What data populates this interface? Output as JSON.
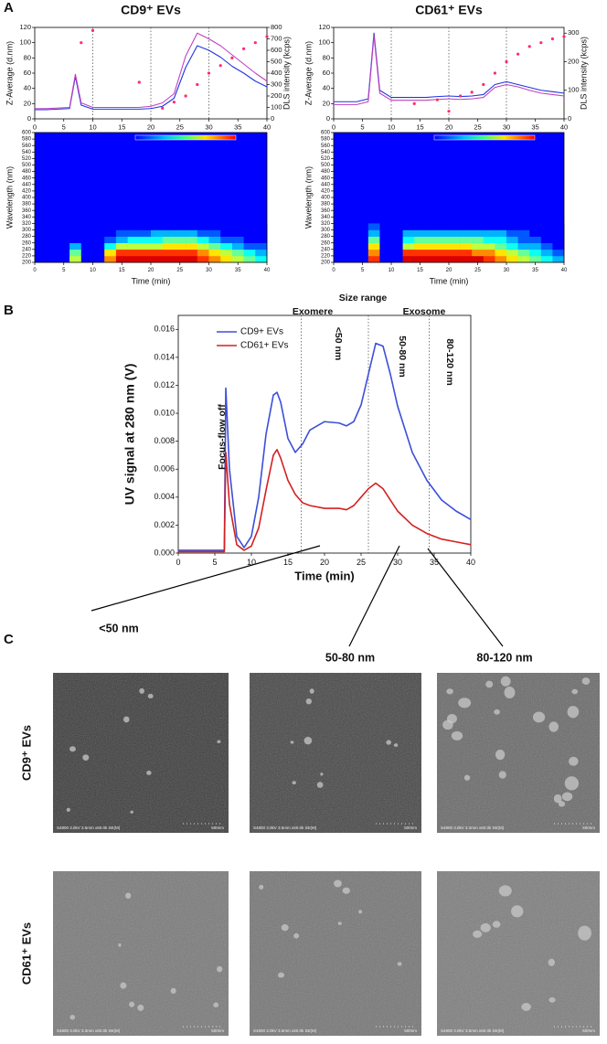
{
  "panel_labels": [
    "A",
    "B",
    "C"
  ],
  "chart_data": [
    {
      "type": "line",
      "title": "CD9⁺ EVs",
      "ylabel": "Z-Average (d.nm)",
      "y2label": "DLS intensity (kcps)",
      "x": [
        0,
        2,
        4,
        6,
        7,
        8,
        10,
        12,
        14,
        16,
        18,
        20,
        22,
        24,
        26,
        28,
        30,
        32,
        34,
        36,
        38,
        40
      ],
      "series": [
        {
          "color": "#1f35e0",
          "axis": "y2",
          "mode": "lines",
          "values": [
            80,
            80,
            85,
            90,
            370,
            120,
            85,
            85,
            85,
            85,
            85,
            90,
            110,
            180,
            450,
            640,
            600,
            540,
            460,
            400,
            330,
            280
          ]
        },
        {
          "color": "#c040c0",
          "axis": "y2",
          "mode": "lines",
          "values": [
            90,
            90,
            95,
            100,
            390,
            140,
            100,
            100,
            100,
            100,
            100,
            110,
            140,
            220,
            550,
            750,
            700,
            640,
            560,
            480,
            400,
            330
          ]
        },
        {
          "color": "#ff2a6d",
          "mode": "markers",
          "values": [
            null,
            null,
            null,
            null,
            null,
            100,
            116,
            null,
            null,
            null,
            48,
            null,
            14,
            22,
            30,
            45,
            60,
            70,
            80,
            92,
            100,
            108
          ]
        }
      ],
      "xlim": [
        0,
        40
      ],
      "xticks": [
        0,
        5,
        10,
        15,
        20,
        25,
        30,
        35,
        40
      ],
      "ylim": [
        0,
        120
      ],
      "yticks": [
        0,
        20,
        40,
        60,
        80,
        100,
        120
      ],
      "y2lim": [
        0,
        800
      ],
      "y2ticks": [
        0,
        100,
        200,
        300,
        400,
        500,
        600,
        700,
        800
      ],
      "vlines": [
        10,
        20,
        30
      ]
    },
    {
      "type": "heatmap",
      "xlabel": "Time (min)",
      "ylabel": "Wavelength (nm)",
      "x_bins": [
        0,
        2,
        4,
        6,
        8,
        10,
        12,
        14,
        16,
        18,
        20,
        22,
        24,
        26,
        28,
        30,
        32,
        34,
        36,
        38,
        40
      ],
      "y_bins": [
        200,
        220,
        240,
        260,
        280,
        300,
        320
      ],
      "z": [
        [
          0,
          0,
          0,
          5,
          0,
          0,
          7,
          9,
          9,
          9,
          9,
          9,
          9,
          9,
          8,
          7,
          6,
          5,
          4,
          3
        ],
        [
          0,
          0,
          0,
          4,
          0,
          0,
          6,
          8,
          8,
          8,
          8,
          8,
          8,
          8,
          7,
          6,
          5,
          4,
          3,
          2
        ],
        [
          0,
          0,
          0,
          2,
          0,
          0,
          3,
          5,
          5,
          5,
          5,
          6,
          6,
          6,
          5,
          4,
          3,
          2,
          1,
          1
        ],
        [
          0,
          0,
          0,
          0,
          0,
          0,
          1,
          2,
          3,
          3,
          3,
          4,
          4,
          4,
          3,
          2,
          1,
          1,
          0,
          0
        ],
        [
          0,
          0,
          0,
          0,
          0,
          0,
          0,
          1,
          1,
          1,
          2,
          2,
          2,
          2,
          1,
          1,
          0,
          0,
          0,
          0
        ],
        [
          0,
          0,
          0,
          0,
          0,
          0,
          0,
          0,
          0,
          0,
          0,
          0,
          0,
          0,
          0,
          0,
          0,
          0,
          0,
          0
        ]
      ],
      "zlim": [
        0,
        10
      ],
      "xlim": [
        0,
        40
      ],
      "xticks": [
        0,
        5,
        10,
        15,
        20,
        25,
        30,
        35,
        40
      ],
      "ylim": [
        200,
        600
      ],
      "yticks": [
        200,
        220,
        240,
        260,
        280,
        300,
        320,
        340,
        360,
        380,
        400,
        420,
        440,
        460,
        480,
        500,
        520,
        540,
        560,
        580,
        600
      ]
    },
    {
      "type": "line",
      "title": "CD61⁺ EVs",
      "ylabel": "Z-Average (d.nm)",
      "y2label": "DLS intensity (kcps)",
      "x": [
        0,
        2,
        4,
        6,
        7,
        8,
        10,
        12,
        14,
        16,
        18,
        20,
        22,
        24,
        26,
        28,
        30,
        32,
        34,
        36,
        38,
        40
      ],
      "series": [
        {
          "color": "#1f35e0",
          "axis": "y2",
          "mode": "lines",
          "values": [
            60,
            60,
            60,
            70,
            300,
            100,
            75,
            75,
            75,
            75,
            78,
            80,
            78,
            80,
            85,
            120,
            130,
            120,
            110,
            100,
            95,
            90
          ]
        },
        {
          "color": "#c040c0",
          "axis": "y2",
          "mode": "lines",
          "values": [
            50,
            50,
            50,
            60,
            290,
            90,
            65,
            65,
            65,
            65,
            68,
            70,
            68,
            70,
            75,
            110,
            120,
            112,
            100,
            90,
            85,
            80
          ]
        },
        {
          "color": "#ff2a6d",
          "mode": "markers",
          "values": [
            null,
            null,
            null,
            null,
            null,
            null,
            null,
            null,
            20,
            null,
            25,
            10,
            30,
            35,
            45,
            60,
            75,
            85,
            95,
            100,
            105,
            108
          ]
        }
      ],
      "xlim": [
        0,
        40
      ],
      "xticks": [
        0,
        5,
        10,
        15,
        20,
        25,
        30,
        35,
        40
      ],
      "ylim": [
        0,
        120
      ],
      "yticks": [
        0,
        20,
        40,
        60,
        80,
        100,
        120
      ],
      "y2lim": [
        0,
        320
      ],
      "y2ticks": [
        0,
        100,
        200,
        300
      ],
      "vlines": [
        10,
        20,
        30
      ]
    },
    {
      "type": "heatmap",
      "xlabel": "Time (min)",
      "ylabel": "Wavelength (nm)",
      "x_bins": [
        0,
        2,
        4,
        6,
        8,
        10,
        12,
        14,
        16,
        18,
        20,
        22,
        24,
        26,
        28,
        30,
        32,
        34,
        36,
        38,
        40
      ],
      "y_bins": [
        200,
        220,
        240,
        260,
        280,
        300,
        320
      ],
      "z": [
        [
          0,
          0,
          0,
          8,
          0,
          0,
          9,
          9,
          9,
          9,
          9,
          9,
          9,
          8,
          7,
          6,
          5,
          4,
          3,
          2
        ],
        [
          0,
          0,
          0,
          7,
          0,
          0,
          8,
          8,
          8,
          8,
          8,
          8,
          7,
          7,
          6,
          5,
          4,
          3,
          2,
          1
        ],
        [
          0,
          0,
          0,
          6,
          0,
          0,
          5,
          6,
          6,
          6,
          6,
          6,
          5,
          5,
          4,
          3,
          2,
          2,
          1,
          0
        ],
        [
          0,
          0,
          0,
          4,
          0,
          0,
          3,
          4,
          4,
          4,
          4,
          4,
          4,
          3,
          3,
          2,
          1,
          1,
          0,
          0
        ],
        [
          0,
          0,
          0,
          2,
          0,
          0,
          2,
          2,
          2,
          2,
          2,
          2,
          2,
          2,
          2,
          1,
          1,
          0,
          0,
          0
        ],
        [
          0,
          0,
          0,
          1,
          0,
          0,
          0,
          0,
          0,
          0,
          0,
          0,
          0,
          0,
          0,
          0,
          0,
          0,
          0,
          0
        ]
      ],
      "zlim": [
        0,
        10
      ],
      "xlim": [
        0,
        40
      ],
      "xticks": [
        0,
        5,
        10,
        15,
        20,
        25,
        30,
        35,
        40
      ],
      "ylim": [
        200,
        600
      ],
      "yticks": [
        200,
        220,
        240,
        260,
        280,
        300,
        320,
        340,
        360,
        380,
        400,
        420,
        440,
        460,
        480,
        500,
        520,
        540,
        560,
        580,
        600
      ]
    },
    {
      "type": "line",
      "xlabel": "Time (min)",
      "ylabel": "UV signal at 280 nm (V)",
      "x": [
        0,
        5,
        6.3,
        6.5,
        7,
        8,
        9,
        10,
        11,
        12,
        13,
        13.5,
        14,
        15,
        16,
        17,
        18,
        20,
        22,
        23,
        24,
        25,
        26,
        27,
        28,
        29,
        30,
        32,
        34,
        36,
        38,
        40
      ],
      "series": [
        {
          "name": "CD9+ EVs",
          "color": "#3b4fd8",
          "mode": "lines",
          "values": [
            0.0002,
            0.0002,
            0.0002,
            0.0118,
            0.006,
            0.0012,
            0.0004,
            0.0012,
            0.004,
            0.0085,
            0.0113,
            0.0115,
            0.0108,
            0.0082,
            0.0072,
            0.0078,
            0.0088,
            0.0094,
            0.0093,
            0.0091,
            0.0094,
            0.0106,
            0.0128,
            0.015,
            0.0148,
            0.0128,
            0.0105,
            0.0072,
            0.0052,
            0.0038,
            0.003,
            0.0024
          ]
        },
        {
          "name": "CD61+ EVs",
          "color": "#d42020",
          "mode": "lines",
          "values": [
            0.0001,
            0.0001,
            0.0001,
            0.0072,
            0.0035,
            0.0006,
            0.0002,
            0.0005,
            0.0018,
            0.0045,
            0.007,
            0.0074,
            0.0068,
            0.0052,
            0.0042,
            0.0036,
            0.0034,
            0.0032,
            0.0032,
            0.0031,
            0.0034,
            0.004,
            0.0046,
            0.005,
            0.0046,
            0.0038,
            0.003,
            0.002,
            0.0014,
            0.001,
            0.0008,
            0.0006
          ]
        }
      ],
      "xlim": [
        0,
        40
      ],
      "xticks": [
        0,
        5,
        10,
        15,
        20,
        25,
        30,
        35,
        40
      ],
      "ylim": [
        0,
        0.017
      ],
      "yticks": [
        {
          "value": 0,
          "label": "0.000"
        },
        {
          "value": 0.002,
          "label": "0.002"
        },
        {
          "value": 0.004,
          "label": "0.004"
        },
        {
          "value": 0.006,
          "label": "0.006"
        },
        {
          "value": 0.008,
          "label": "0.008"
        },
        {
          "value": 0.01,
          "label": "0.010"
        },
        {
          "value": 0.012,
          "label": "0.012"
        },
        {
          "value": 0.014,
          "label": "0.014"
        },
        {
          "value": 0.016,
          "label": "0.016"
        }
      ],
      "vlines": [
        16.8,
        26,
        34.3
      ],
      "legend": "upper left",
      "annotations": [
        "Size range",
        "Exomere",
        "Exosome",
        "<50 nm",
        "50-80 nm",
        "80-120 nm",
        "Focus-flow off"
      ]
    }
  ],
  "sem": {
    "column_labels": [
      "<50 nm",
      "50-80 nm",
      "80-120 nm"
    ],
    "row_labels": [
      "CD9⁺ EVs",
      "CD61⁺ EVs"
    ],
    "images": [
      [
        {
          "caption": "S4800 3.0kV 3.5mm x60.0k SE(M)",
          "scale": "500nm"
        },
        {
          "caption": "S4800 3.0kV 3.5mm x60.0k SE(M)",
          "scale": "500nm"
        },
        {
          "caption": "S4800 3.0kV 3.3mm x60.0k SE(M)",
          "scale": "500nm"
        }
      ],
      [
        {
          "caption": "S4800 3.0kV 3.3mm x60.0k SE(M)",
          "scale": "500nm"
        },
        {
          "caption": "S4800 3.0kV 3.5mm x60.0k SE(M)",
          "scale": "500nm"
        },
        {
          "caption": "S4800 3.0kV 3.5mm x60.0k SE(M)",
          "scale": "500nm"
        }
      ]
    ]
  }
}
